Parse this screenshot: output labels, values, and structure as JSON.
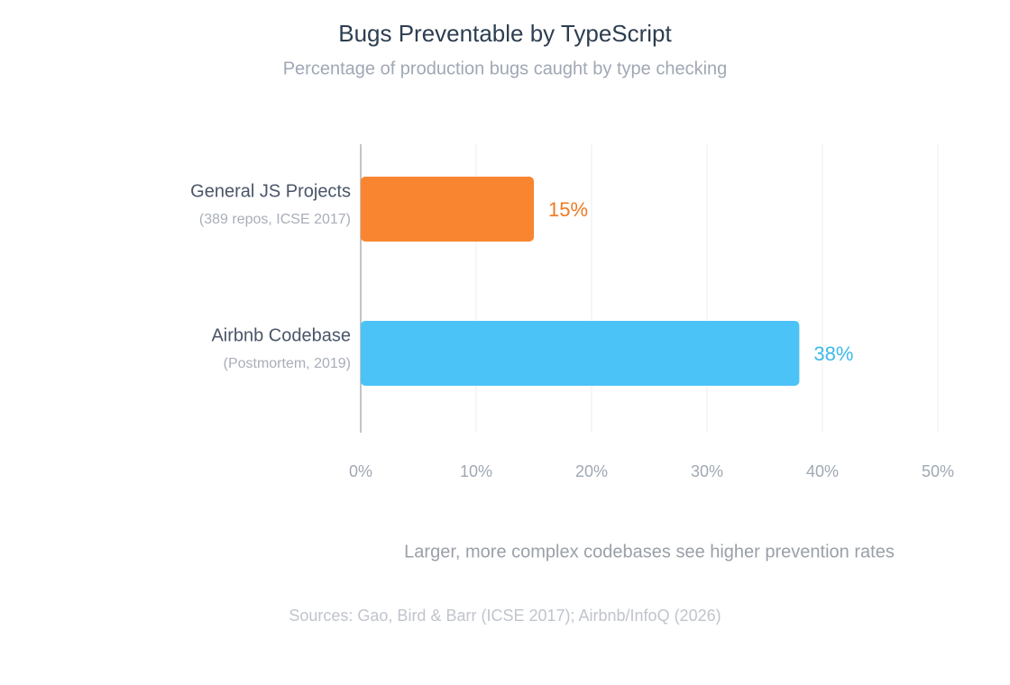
{
  "chart_data": {
    "type": "hbar",
    "title": "Bugs Preventable by TypeScript",
    "subtitle": "Percentage of production bugs caught by type checking",
    "categories": [
      "General JS Projects",
      "Airbnb Codebase"
    ],
    "category_notes": [
      "(389 repos, ICSE 2017)",
      "(Postmortem, 2019)"
    ],
    "values": [
      15,
      38
    ],
    "value_labels": [
      "15%",
      "38%"
    ],
    "colors": [
      "#f98530",
      "#4cc3f7"
    ],
    "value_label_colors": [
      "#ee7a22",
      "#3cb9e8"
    ],
    "xlim": [
      0,
      50
    ],
    "xticks": [
      {
        "value": 0,
        "label": "0%"
      },
      {
        "value": 10,
        "label": "10%"
      },
      {
        "value": 20,
        "label": "20%"
      },
      {
        "value": 30,
        "label": "30%"
      },
      {
        "value": 40,
        "label": "40%"
      },
      {
        "value": 50,
        "label": "50%"
      }
    ],
    "grid": true,
    "annotation": "Larger, more complex codebases see higher prevention rates",
    "source": "Sources: Gao, Bird & Barr (ICSE 2017); Airbnb/InfoQ (2026)"
  }
}
